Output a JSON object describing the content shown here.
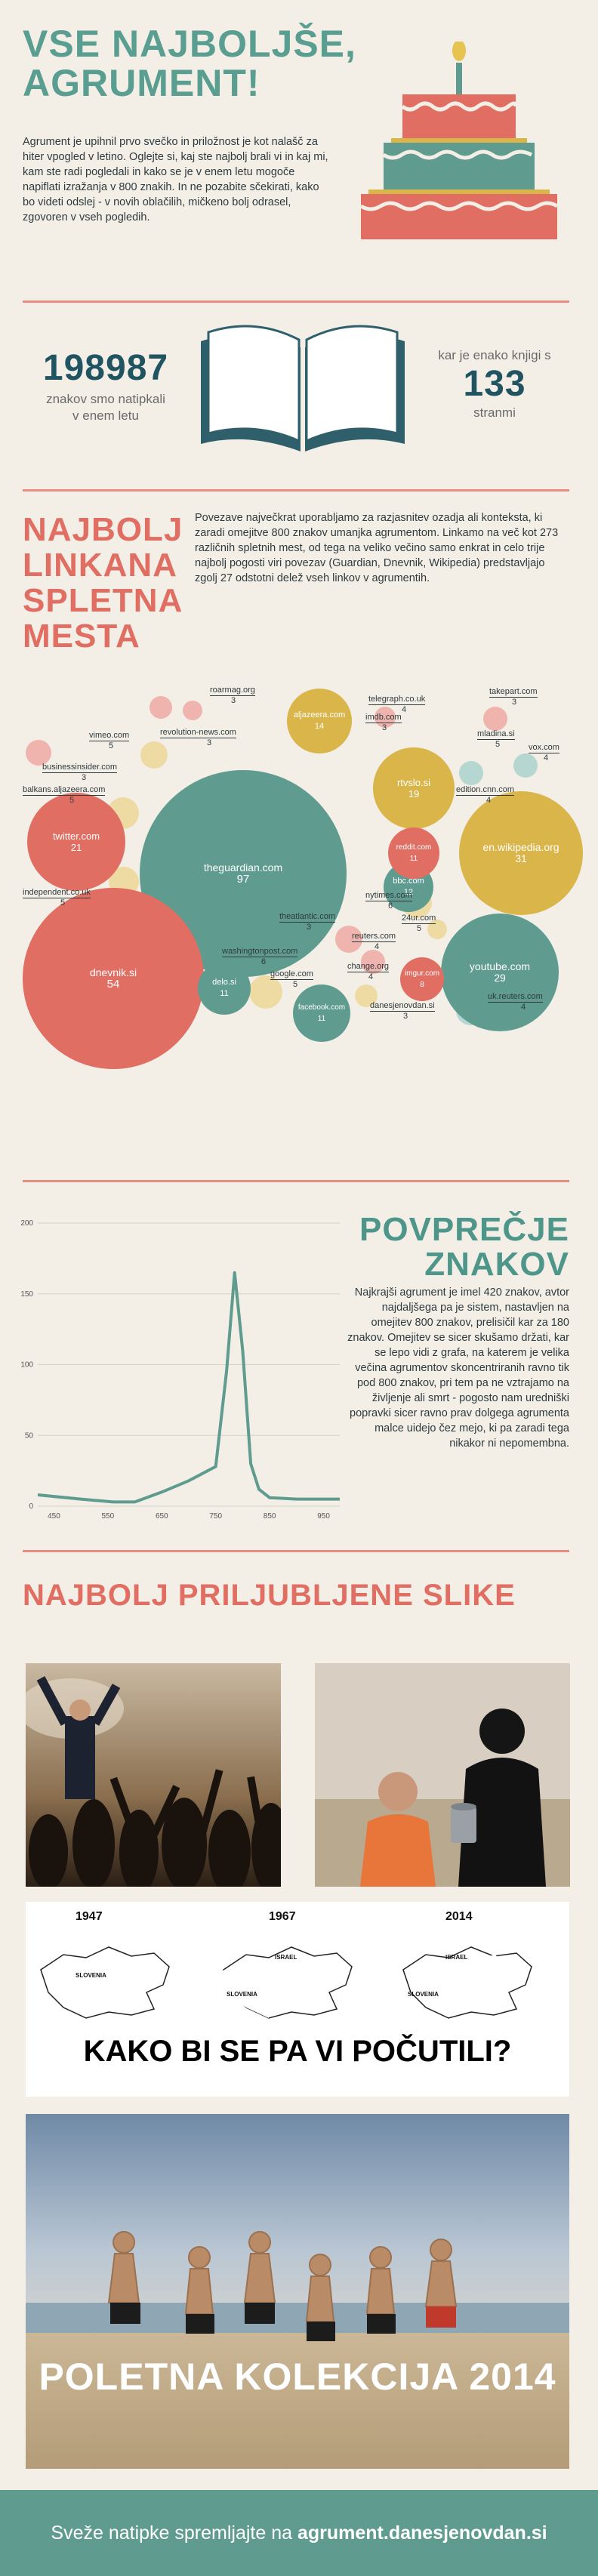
{
  "header": {
    "title_line1": "VSE NAJBOLJŠE,",
    "title_line2": "AGRUMENT!",
    "intro": "Agrument je upihnil prvo svečko in priložnost je kot nalašč za hiter vpogled v letino. Oglejte si, kaj ste najbolj brali vi in kaj mi, kam ste radi pogledali in kako se je v enem letu mogoče napiflati izražanja v 800 znakih. In ne pozabite sčekirati, kako bo videti odslej - v novih oblačilih, mičkeno bolj odrasel, zgovoren v vseh pogledih."
  },
  "stats": {
    "chars_value": "198987",
    "chars_caption": "znakov smo natipkali v enem letu",
    "pages_caption_top": "kar je enako knjigi s",
    "pages_value": "133",
    "pages_caption_bottom": "stranmi"
  },
  "links": {
    "title_lines": [
      "NAJBOLJ",
      "LINKANA",
      "SPLETNA",
      "MESTA"
    ],
    "text": "Povezave največkrat uporabljamo za razjasnitev ozadja ali konteksta, ki zaradi omejitve 800 znakov umanjka agrumentom. Linkamo na več kot 273 različnih spletnih mest, od tega na veliko večino samo enkrat in celo trije najbolj pogosti viri povezav (Guardian, Dnevnik, Wikipedia) predstavljajo zgolj 27 odstotni delež vseh linkov v agrumentih.",
    "big_bubbles": [
      {
        "name": "theguardian.com",
        "value": "97"
      },
      {
        "name": "dnevnik.si",
        "value": "54"
      },
      {
        "name": "en.wikipedia.org",
        "value": "31"
      },
      {
        "name": "youtube.com",
        "value": "29"
      },
      {
        "name": "twitter.com",
        "value": "21"
      },
      {
        "name": "rtvslo.si",
        "value": "19"
      },
      {
        "name": "aljazeera.com",
        "value": "14"
      },
      {
        "name": "bbc.com",
        "value": "12"
      },
      {
        "name": "reddit.com",
        "value": "11"
      },
      {
        "name": "delo.si",
        "value": "11"
      },
      {
        "name": "facebook.com",
        "value": "11"
      },
      {
        "name": "imgur.com",
        "value": "8"
      }
    ],
    "small_labels": [
      {
        "name": "roarmag.org",
        "value": "3"
      },
      {
        "name": "revolution-news.com",
        "value": "3"
      },
      {
        "name": "vimeo.com",
        "value": "5"
      },
      {
        "name": "businessinsider.com",
        "value": "3"
      },
      {
        "name": "balkans.aljazeera.com",
        "value": "5"
      },
      {
        "name": "independent.co.uk",
        "value": "5"
      },
      {
        "name": "telegraph.co.uk",
        "value": "4"
      },
      {
        "name": "imdb.com",
        "value": "3"
      },
      {
        "name": "takepart.com",
        "value": "3"
      },
      {
        "name": "mladina.si",
        "value": "5"
      },
      {
        "name": "vox.com",
        "value": "4"
      },
      {
        "name": "edition.cnn.com",
        "value": "4"
      },
      {
        "name": "nytimes.com",
        "value": "6"
      },
      {
        "name": "24ur.com",
        "value": "5"
      },
      {
        "name": "theatlantic.com",
        "value": "3"
      },
      {
        "name": "reuters.com",
        "value": "4"
      },
      {
        "name": "washingtonpost.com",
        "value": "6"
      },
      {
        "name": "change.org",
        "value": "4"
      },
      {
        "name": "google.com",
        "value": "5"
      },
      {
        "name": "danesjenovdan.si",
        "value": "3"
      },
      {
        "name": "uk.reuters.com",
        "value": "4"
      }
    ]
  },
  "average": {
    "title_line1": "POVPREČJE",
    "title_line2": "ZNAKOV",
    "text": "Najkrajši agrument je imel 420 znakov, avtor najdaljšega pa je sistem, nastavljen na omejitev 800 znakov, prelisičil kar za 180 znakov. Omejitev se sicer skušamo držati, kar se lepo vidi z grafa, na katerem je velika večina agrumentov skoncentriranih ravno tik pod 800 znakov, pri tem pa ne vztrajamo na življenje ali smrt - pogosto nam uredniški popravki sicer ravno prav dolgega agrumenta malce uidejo čez mejo, ki pa zaradi tega nikakor ni nepomembna."
  },
  "chart_data": {
    "type": "line",
    "title": "",
    "xlabel": "",
    "ylabel": "",
    "x_ticks": [
      "450",
      "550",
      "650",
      "750",
      "850",
      "950"
    ],
    "y_ticks": [
      "0",
      "50",
      "100",
      "150",
      "200"
    ],
    "xlim": [
      420,
      980
    ],
    "ylim": [
      0,
      200
    ],
    "grid": true,
    "series": [
      {
        "x": [
          420,
          500,
          560,
          600,
          650,
          700,
          750,
          770,
          785,
          800,
          815,
          830,
          850,
          900,
          980
        ],
        "y": [
          8,
          5,
          3,
          3,
          10,
          18,
          28,
          95,
          165,
          110,
          30,
          12,
          6,
          5,
          5
        ],
        "color": "#5f9c8f"
      }
    ]
  },
  "images": {
    "title": "NAJBOLJ PRILJUBLJENE SLIKE",
    "meme_years": [
      "1947",
      "1967",
      "2014"
    ],
    "meme_country_label": "SLOVENIA",
    "meme_israel_label": "ISRAEL",
    "meme_caption": "KAKO BI SE PA VI POČUTILI?",
    "beach_caption": "POLETNA KOLEKCIJA 2014"
  },
  "footer": {
    "text_prefix": "Sveže natipke spremljajte na",
    "link": "agrument.danesjenovdan.si"
  },
  "colors": {
    "teal": "#5f9c8f",
    "coral": "#e06e63",
    "mustard": "#d9b54a",
    "pink": "#efb4ad",
    "sand": "#eedba4",
    "light_teal": "#b5d6d1",
    "background": "#f3efe7"
  }
}
